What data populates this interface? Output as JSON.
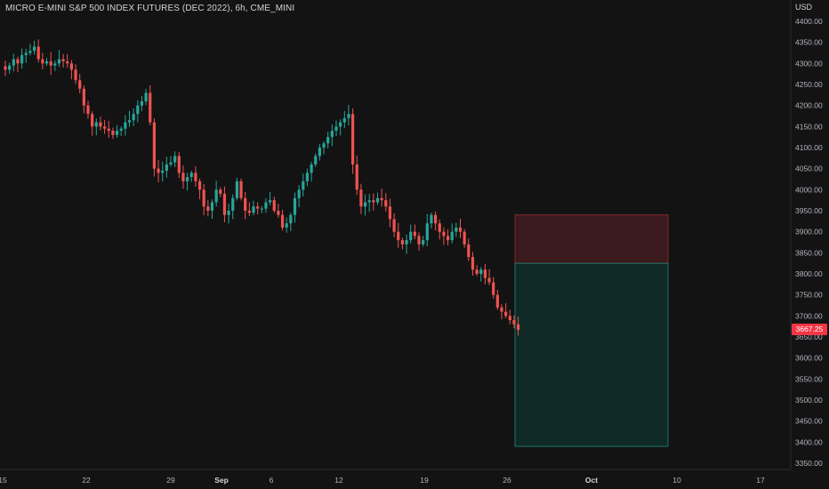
{
  "header": {
    "title": "MICRO E-MINI S&P 500 INDEX FUTURES (DEC 2022), 6h, CME_MINI",
    "currency": "USD"
  },
  "price_axis": {
    "labels": [
      "4400.00",
      "4350.00",
      "4300.00",
      "4250.00",
      "4200.00",
      "4150.00",
      "4100.00",
      "4050.00",
      "4000.00",
      "3950.00",
      "3900.00",
      "3850.00",
      "3800.00",
      "3750.00",
      "3700.00",
      "3650.00",
      "3600.00",
      "3550.00",
      "3500.00",
      "3450.00",
      "3400.00",
      "3350.00"
    ],
    "last_price_label": "3667.25"
  },
  "time_axis": {
    "labels": [
      {
        "text": "15",
        "bold": false
      },
      {
        "text": "22",
        "bold": false
      },
      {
        "text": "29",
        "bold": false
      },
      {
        "text": "Sep",
        "bold": true
      },
      {
        "text": "6",
        "bold": false
      },
      {
        "text": "12",
        "bold": false
      },
      {
        "text": "19",
        "bold": false
      },
      {
        "text": "26",
        "bold": false
      },
      {
        "text": "Oct",
        "bold": true
      },
      {
        "text": "10",
        "bold": false
      },
      {
        "text": "17",
        "bold": false
      }
    ]
  },
  "colors": {
    "background": "#131313",
    "up": "#26a69a",
    "down": "#ef5350",
    "stop_zone": "#3a1a1d",
    "target_zone": "#0f2a26",
    "last_price": "#f23645"
  },
  "chart_data": {
    "type": "candlestick",
    "title": "MICRO E-MINI S&P 500 INDEX FUTURES (DEC 2022), 6h, CME_MINI",
    "y_unit": "USD",
    "ylim": [
      3325,
      4425
    ],
    "x_range": [
      "Aug 15",
      "Oct 20"
    ],
    "last_price": 3667.25,
    "position": {
      "side": "short",
      "entry": 3825,
      "stop": 3940,
      "target": 3390
    },
    "closes": [
      4285,
      4295,
      4310,
      4300,
      4320,
      4325,
      4330,
      4340,
      4310,
      4300,
      4305,
      4295,
      4300,
      4310,
      4305,
      4300,
      4285,
      4260,
      4240,
      4200,
      4180,
      4150,
      4160,
      4150,
      4145,
      4140,
      4130,
      4140,
      4145,
      4160,
      4165,
      4180,
      4200,
      4210,
      4230,
      4160,
      4050,
      4040,
      4045,
      4060,
      4065,
      4080,
      4040,
      4020,
      4030,
      4040,
      4020,
      4000,
      3960,
      3950,
      3970,
      4000,
      3990,
      3940,
      3950,
      3980,
      4020,
      3980,
      3950,
      3945,
      3960,
      3955,
      3955,
      3970,
      3975,
      3950,
      3940,
      3910,
      3920,
      3940,
      3980,
      4000,
      4020,
      4040,
      4060,
      4080,
      4100,
      4110,
      4125,
      4140,
      4150,
      4160,
      4170,
      4180,
      4060,
      4000,
      3960,
      3970,
      3975,
      3970,
      3980,
      3975,
      3960,
      3930,
      3900,
      3880,
      3870,
      3880,
      3900,
      3890,
      3870,
      3880,
      3920,
      3940,
      3920,
      3900,
      3890,
      3880,
      3900,
      3910,
      3900,
      3870,
      3840,
      3810,
      3800,
      3810,
      3790,
      3780,
      3750,
      3720,
      3710,
      3700,
      3690,
      3680,
      3667
    ]
  }
}
